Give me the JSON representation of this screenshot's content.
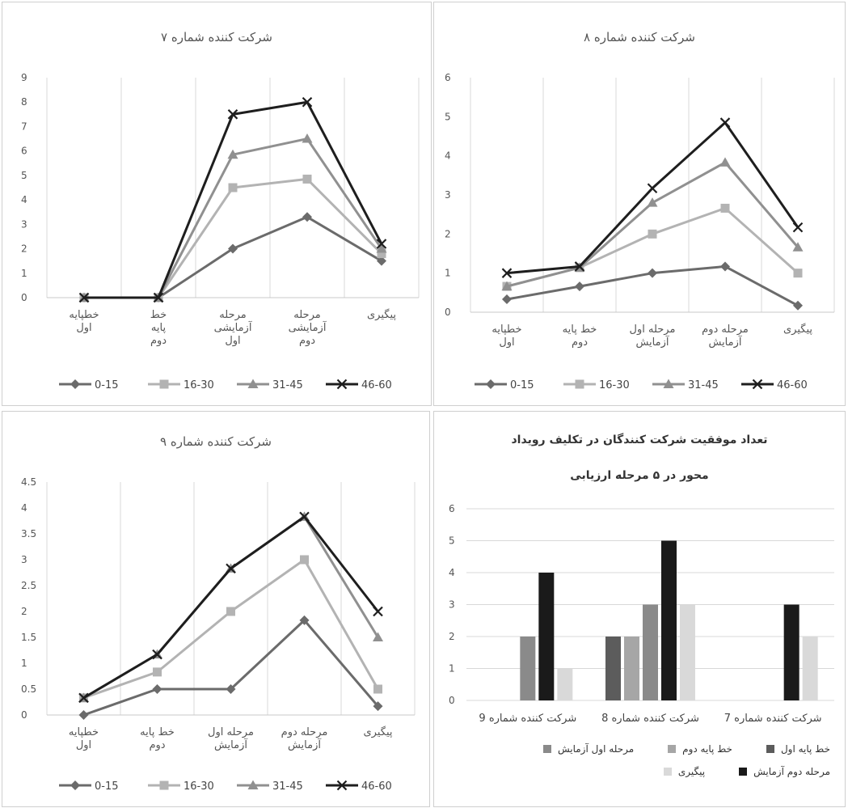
{
  "colors": {
    "s0": "#6b6b6b",
    "s1": "#b3b3b3",
    "s2": "#909090",
    "s3": "#1e1e1e",
    "b0": "#5c5c5c",
    "b1": "#a6a6a6",
    "b2": "#8a8a8a",
    "b3": "#1a1a1a",
    "b4": "#d9d9d9",
    "grid": "#d8d8d8",
    "axis": "#c8c8c8"
  },
  "chart_data": [
    {
      "id": "p7",
      "type": "line",
      "title": "شرکت کننده شماره ۷",
      "categories": [
        "خطپایه اول",
        "خط پایه دوم",
        "مرحله آزمایشی اول",
        "مرحله آزمایشی دوم",
        "پیگیری"
      ],
      "ylim": [
        0,
        9
      ],
      "yticks": [
        "0",
        "1",
        "2",
        "3",
        "4",
        "5",
        "6",
        "7",
        "8",
        "9"
      ],
      "series": [
        {
          "name": "0-15",
          "marker": "diamond",
          "values": [
            0,
            0,
            2,
            3.3,
            1.5
          ]
        },
        {
          "name": "16-30",
          "marker": "square",
          "values": [
            0,
            0,
            4.5,
            4.85,
            1.8
          ]
        },
        {
          "name": "31-45",
          "marker": "triangle",
          "values": [
            0,
            0,
            5.85,
            6.5,
            2.0
          ]
        },
        {
          "name": "46-60",
          "marker": "x",
          "values": [
            0,
            0,
            7.5,
            8.0,
            2.2
          ]
        }
      ],
      "grid": "vertical",
      "legend": "bottom"
    },
    {
      "id": "p8",
      "type": "line",
      "title": "شرکت کننده شماره ۸",
      "categories": [
        "خطپایه اول",
        "خط پایه دوم",
        "مرحله اول آزمایش",
        "مرحله دوم آزمایش",
        "پیگیری"
      ],
      "ylim": [
        0,
        6
      ],
      "yticks": [
        "0",
        "1",
        "2",
        "3",
        "4",
        "5",
        "6"
      ],
      "series": [
        {
          "name": "0-15",
          "marker": "diamond",
          "values": [
            0.33,
            0.66,
            1.0,
            1.17,
            0.17
          ]
        },
        {
          "name": "16-30",
          "marker": "square",
          "values": [
            0.66,
            1.14,
            2.0,
            2.66,
            1.0
          ]
        },
        {
          "name": "31-45",
          "marker": "triangle",
          "values": [
            0.66,
            1.14,
            2.8,
            3.83,
            1.66
          ]
        },
        {
          "name": "46-60",
          "marker": "x",
          "values": [
            1.0,
            1.17,
            3.17,
            4.85,
            2.17
          ]
        }
      ],
      "grid": "vertical",
      "legend": "bottom"
    },
    {
      "id": "p9",
      "type": "line",
      "title": "شرکت کننده شماره ۹",
      "categories": [
        "خطپایه اول",
        "خط پایه دوم",
        "مرحله اول آزمایش",
        "مرحله دوم آزمایش",
        "پیگیری"
      ],
      "ylim": [
        0,
        4.5
      ],
      "yticks": [
        "0",
        "0.5",
        "1",
        "1.5",
        "2",
        "2.5",
        "3",
        "3.5",
        "4",
        "4.5"
      ],
      "series": [
        {
          "name": "0-15",
          "marker": "diamond",
          "values": [
            0,
            0.5,
            0.5,
            1.83,
            0.17
          ]
        },
        {
          "name": "16-30",
          "marker": "square",
          "values": [
            0.33,
            0.83,
            2.0,
            3.0,
            0.5
          ]
        },
        {
          "name": "31-45",
          "marker": "triangle",
          "values": [
            0.33,
            1.17,
            2.83,
            3.83,
            1.5
          ]
        },
        {
          "name": "46-60",
          "marker": "x",
          "values": [
            0.33,
            1.17,
            2.83,
            3.83,
            2.0
          ]
        }
      ],
      "grid": "vertical",
      "legend": "bottom"
    },
    {
      "id": "pbar",
      "type": "bar",
      "title_line1": "تعداد موفقیت شرکت کنندگان در تکلیف رویداد",
      "title_line2": "محور در ۵ مرحله ارزیابی",
      "categories": [
        "شرکت کننده شماره 7",
        "شرکت کننده شماره 8",
        "شرکت کننده شماره 9"
      ],
      "ylim": [
        0,
        6
      ],
      "yticks": [
        "0",
        "1",
        "2",
        "3",
        "4",
        "5",
        "6"
      ],
      "series": [
        {
          "name": "خط پایه اول",
          "values": [
            0,
            2,
            0
          ]
        },
        {
          "name": "خط پایه دوم",
          "values": [
            0,
            2,
            0
          ]
        },
        {
          "name": "مرحله اول آزمایش",
          "values": [
            0,
            3,
            2
          ]
        },
        {
          "name": "مرحله دوم آزمایش",
          "values": [
            3,
            5,
            4
          ]
        },
        {
          "name": "پیگیری",
          "values": [
            2,
            3,
            1
          ]
        }
      ],
      "grid": "horizontal",
      "legend": "bottom"
    }
  ]
}
